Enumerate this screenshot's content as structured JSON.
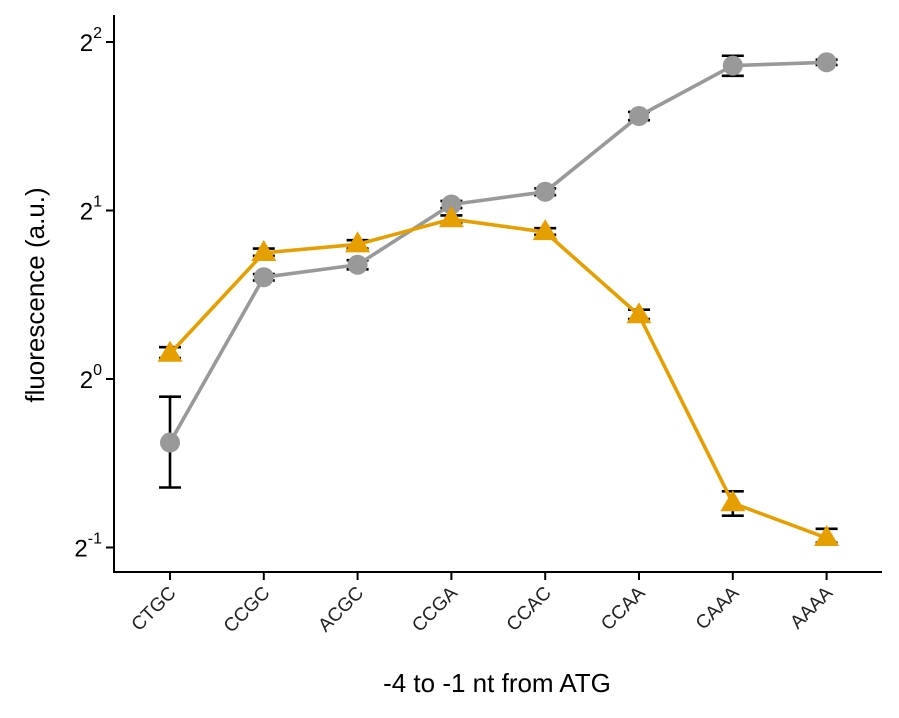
{
  "chart_data": {
    "type": "line",
    "title": "",
    "xlabel": "-4 to -1 nt from ATG",
    "ylabel": "fluorescence (a.u.)",
    "y_scale": "log2",
    "ylim": [
      0.43,
      4.5
    ],
    "y_ticks": [
      {
        "value": 0.5,
        "base": "2",
        "exp": "-1"
      },
      {
        "value": 1,
        "base": "2",
        "exp": "0"
      },
      {
        "value": 2,
        "base": "2",
        "exp": "1"
      },
      {
        "value": 4,
        "base": "2",
        "exp": "2"
      }
    ],
    "categories": [
      "CTGC",
      "CCGC",
      "ACGC",
      "CCGA",
      "CCAC",
      "CCAA",
      "CAAA",
      "AAAA"
    ],
    "grid": false,
    "legend": "none",
    "series": [
      {
        "marker": "circle",
        "color": "#999999",
        "values": [
          0.77,
          1.52,
          1.6,
          2.05,
          2.16,
          2.95,
          3.63,
          3.68
        ],
        "err_low": [
          0.64,
          1.5,
          1.57,
          2.02,
          2.13,
          2.9,
          3.48,
          3.64
        ],
        "err_high": [
          0.93,
          1.54,
          1.63,
          2.08,
          2.19,
          3.0,
          3.78,
          3.72
        ]
      },
      {
        "marker": "triangle",
        "color": "#E69F00",
        "values": [
          1.11,
          1.68,
          1.74,
          1.93,
          1.83,
          1.3,
          0.6,
          0.52
        ],
        "err_low": [
          1.09,
          1.66,
          1.71,
          1.9,
          1.81,
          1.28,
          0.57,
          0.51
        ],
        "err_high": [
          1.14,
          1.71,
          1.77,
          1.96,
          1.86,
          1.33,
          0.63,
          0.54
        ]
      }
    ]
  }
}
